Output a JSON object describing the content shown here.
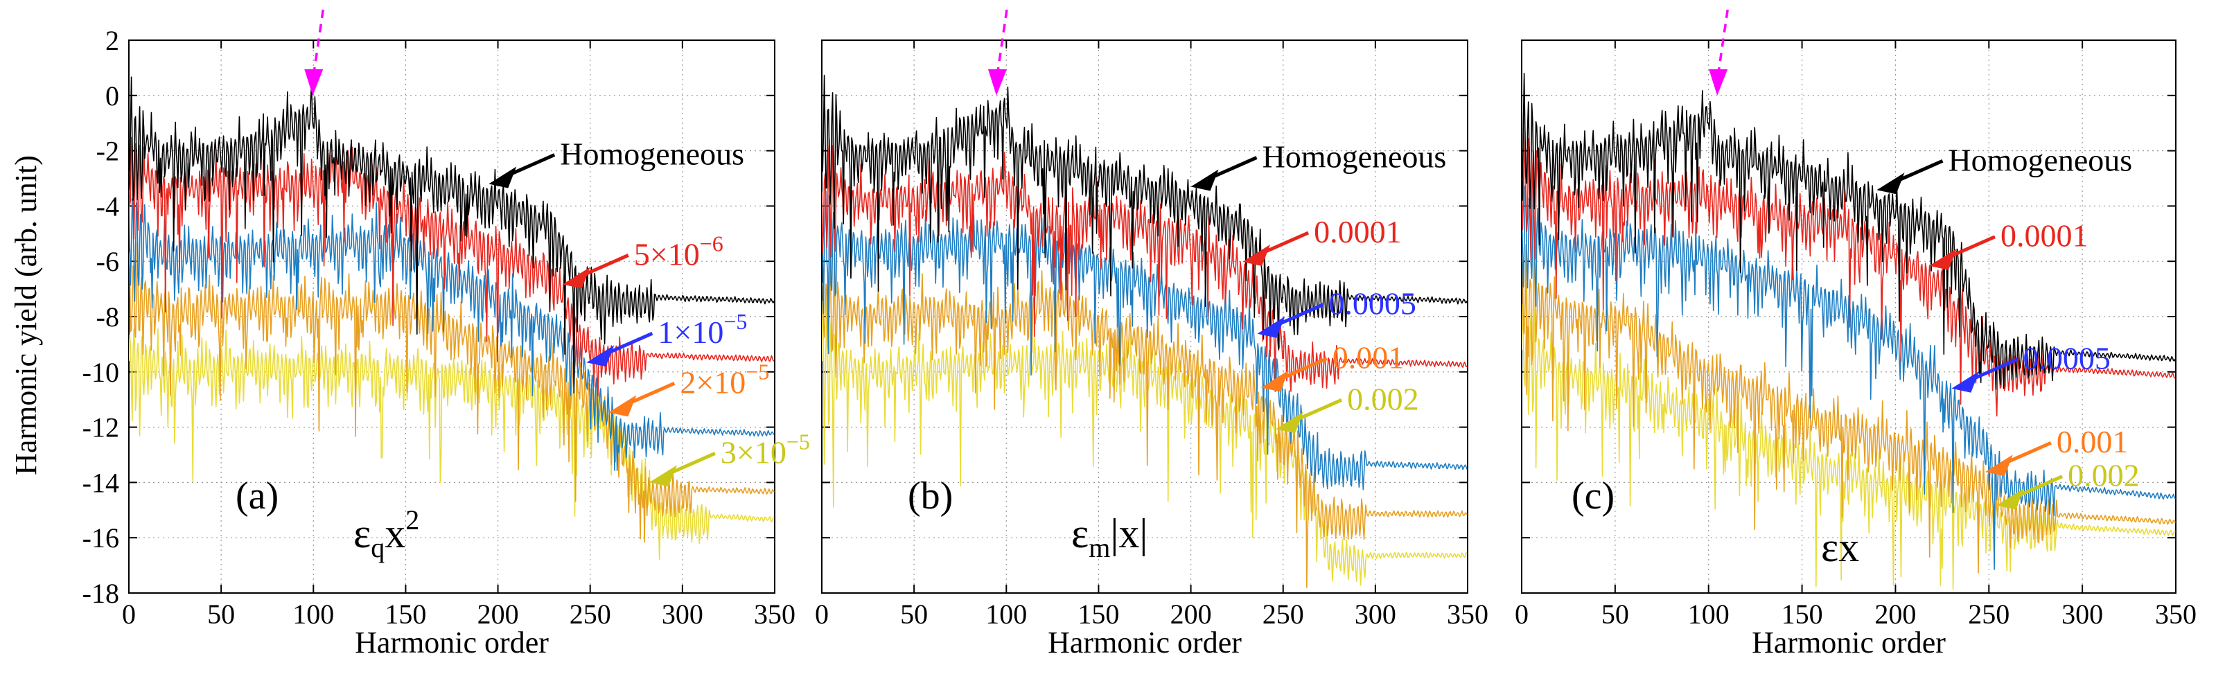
{
  "figure": {
    "ylabel": "Harmonic yield (arb. unit)",
    "xlabel": "Harmonic order",
    "xlim": [
      0,
      350
    ],
    "ylim": [
      -18,
      2
    ],
    "x_ticks": [
      "0",
      "50",
      "100",
      "150",
      "200",
      "250",
      "300",
      "350"
    ],
    "y_ticks": [
      "2",
      "0",
      "-2",
      "-4",
      "-6",
      "-8",
      "-10",
      "-12",
      "-14",
      "-16",
      "-18"
    ],
    "colors": {
      "black": "#000000",
      "red": "#e8261e",
      "blue": "#1f7ec2",
      "orange": "#e8a020",
      "yellow": "#eadc38",
      "magenta": "#ff00ff",
      "arrow_blue": "#2b32ff",
      "arrow_orange": "#ff7a1a",
      "arrow_yellow": "#c9c81a",
      "arrow_red": "#e8261e"
    }
  },
  "chart_data": [
    {
      "type": "line",
      "panel_label": "(a)",
      "potential": "εqx²",
      "potential_parts": {
        "base": "ε",
        "sub": "q",
        "var": "x",
        "sup": "2"
      },
      "xlabel": "Harmonic order",
      "ylabel": "Harmonic yield (arb. unit)",
      "xlim": [
        0,
        350
      ],
      "ylim": [
        -18,
        2
      ],
      "marker_x": 100,
      "series": [
        {
          "name": "Homogeneous",
          "label_parts": {
            "text": "Homogeneous"
          },
          "color": "black",
          "x": [
            0,
            20,
            60,
            100,
            105,
            150,
            200,
            230,
            245,
            260,
            300,
            350
          ],
          "y": [
            -1.0,
            -2.0,
            -1.8,
            -0.5,
            -1.8,
            -2.6,
            -3.6,
            -4.6,
            -6.8,
            -7.2,
            -7.3,
            -7.4
          ]
        },
        {
          "name": "5×10^-6",
          "label_parts": {
            "mant": "5×10",
            "exp": "−6"
          },
          "color": "red",
          "x": [
            0,
            20,
            60,
            100,
            115,
            150,
            200,
            230,
            245,
            255,
            300,
            350
          ],
          "y": [
            -2.2,
            -3.2,
            -3.0,
            -3.0,
            -2.4,
            -4.0,
            -5.4,
            -6.4,
            -8.6,
            -9.3,
            -9.4,
            -9.5
          ]
        },
        {
          "name": "1×10^-5",
          "label_parts": {
            "mant": "1×10",
            "exp": "−5"
          },
          "color": "blue",
          "x": [
            0,
            20,
            60,
            100,
            140,
            170,
            200,
            230,
            245,
            265,
            300,
            350
          ],
          "y": [
            -4.2,
            -5.6,
            -5.4,
            -5.2,
            -5.0,
            -6.0,
            -7.2,
            -8.2,
            -9.6,
            -12.0,
            -12.1,
            -12.2
          ]
        },
        {
          "name": "2×10^-5",
          "label_parts": {
            "mant": "2×10",
            "exp": "−5"
          },
          "color": "orange",
          "x": [
            0,
            20,
            60,
            100,
            150,
            180,
            220,
            250,
            262,
            280,
            300,
            350
          ],
          "y": [
            -6.6,
            -7.6,
            -7.4,
            -7.4,
            -7.4,
            -8.4,
            -9.6,
            -10.6,
            -12.0,
            -14.1,
            -14.2,
            -14.3
          ]
        },
        {
          "name": "3×10^-5",
          "label_parts": {
            "mant": "3×10",
            "exp": "−5"
          },
          "color": "yellow",
          "x": [
            0,
            20,
            60,
            100,
            150,
            200,
            230,
            262,
            275,
            290,
            320,
            350
          ],
          "y": [
            -8.8,
            -9.8,
            -9.6,
            -9.6,
            -9.8,
            -10.2,
            -10.8,
            -11.8,
            -13.6,
            -15.1,
            -15.2,
            -15.3
          ]
        }
      ],
      "annotations": [
        {
          "series": "Homogeneous",
          "color": "black"
        },
        {
          "series": "5×10^-6",
          "color": "arrow_red"
        },
        {
          "series": "1×10^-5",
          "color": "arrow_blue"
        },
        {
          "series": "2×10^-5",
          "color": "arrow_orange"
        },
        {
          "series": "3×10^-5",
          "color": "arrow_yellow"
        }
      ]
    },
    {
      "type": "line",
      "panel_label": "(b)",
      "potential": "εm|x|",
      "potential_parts": {
        "base": "ε",
        "sub": "m",
        "var": "|x|",
        "sup": ""
      },
      "xlabel": "Harmonic order",
      "ylabel": "",
      "xlim": [
        0,
        350
      ],
      "ylim": [
        -18,
        2
      ],
      "marker_x": 95,
      "series": [
        {
          "name": "Homogeneous",
          "label_parts": {
            "text": "Homogeneous"
          },
          "color": "black",
          "x": [
            0,
            20,
            60,
            100,
            105,
            150,
            200,
            230,
            245,
            260,
            300,
            350
          ],
          "y": [
            -1.0,
            -2.0,
            -1.8,
            -0.4,
            -1.8,
            -2.6,
            -3.6,
            -4.6,
            -6.8,
            -7.2,
            -7.3,
            -7.4
          ]
        },
        {
          "name": "0.0001",
          "label_parts": {
            "text": "0.0001"
          },
          "color": "red",
          "x": [
            0,
            20,
            60,
            100,
            120,
            150,
            200,
            225,
            240,
            255,
            300,
            350
          ],
          "y": [
            -2.8,
            -3.6,
            -3.4,
            -3.0,
            -4.4,
            -4.0,
            -5.0,
            -6.0,
            -7.6,
            -9.5,
            -9.6,
            -9.7
          ]
        },
        {
          "name": "0.0005",
          "label_parts": {
            "text": "0.0005"
          },
          "color": "blue",
          "x": [
            0,
            20,
            60,
            100,
            130,
            170,
            200,
            230,
            245,
            270,
            300,
            350
          ],
          "y": [
            -4.4,
            -5.4,
            -5.2,
            -5.0,
            -5.4,
            -6.4,
            -7.4,
            -8.2,
            -10.0,
            -13.2,
            -13.3,
            -13.4
          ]
        },
        {
          "name": "0.001",
          "label_parts": {
            "text": "0.001"
          },
          "color": "orange",
          "x": [
            0,
            20,
            60,
            100,
            125,
            160,
            200,
            235,
            255,
            270,
            300,
            350
          ],
          "y": [
            -6.8,
            -7.8,
            -7.6,
            -7.8,
            -7.2,
            -8.4,
            -9.4,
            -10.6,
            -12.4,
            -15.0,
            -15.1,
            -15.1
          ]
        },
        {
          "name": "0.002",
          "label_parts": {
            "text": "0.002"
          },
          "color": "yellow",
          "x": [
            0,
            20,
            60,
            100,
            130,
            160,
            200,
            230,
            255,
            270,
            275,
            290
          ],
          "y": [
            -8.8,
            -9.8,
            -9.6,
            -9.4,
            -9.4,
            -9.6,
            -10.4,
            -11.6,
            -12.8,
            -15.2,
            -16.4,
            -16.6
          ]
        }
      ],
      "annotations": [
        {
          "series": "Homogeneous",
          "color": "black"
        },
        {
          "series": "0.0001",
          "color": "arrow_red"
        },
        {
          "series": "0.0005",
          "color": "arrow_blue"
        },
        {
          "series": "0.001",
          "color": "arrow_orange"
        },
        {
          "series": "0.002",
          "color": "arrow_yellow"
        }
      ]
    },
    {
      "type": "line",
      "panel_label": "(c)",
      "potential": "εx",
      "potential_parts": {
        "base": "ε",
        "sub": "",
        "var": "x",
        "sup": ""
      },
      "xlabel": "Harmonic order",
      "ylabel": "",
      "xlim": [
        0,
        350
      ],
      "ylim": [
        -18,
        2
      ],
      "marker_x": 105,
      "series": [
        {
          "name": "Homogeneous",
          "label_parts": {
            "text": "Homogeneous"
          },
          "color": "black",
          "x": [
            0,
            20,
            60,
            100,
            105,
            150,
            200,
            230,
            245,
            260,
            300,
            350
          ],
          "y": [
            -1.0,
            -2.0,
            -1.8,
            -0.6,
            -1.8,
            -2.6,
            -4.0,
            -5.0,
            -8.4,
            -9.2,
            -9.3,
            -9.5
          ]
        },
        {
          "name": "0.0001",
          "label_parts": {
            "text": "0.0001"
          },
          "color": "red",
          "x": [
            0,
            20,
            60,
            100,
            140,
            170,
            200,
            225,
            240,
            255,
            300,
            350
          ],
          "y": [
            -2.4,
            -3.6,
            -3.4,
            -3.4,
            -4.2,
            -4.4,
            -5.6,
            -6.8,
            -8.4,
            -9.8,
            -9.9,
            -10.1
          ]
        },
        {
          "name": "0.0005",
          "label_parts": {
            "text": "0.0005"
          },
          "color": "blue",
          "x": [
            0,
            20,
            60,
            100,
            140,
            170,
            200,
            220,
            240,
            260,
            300,
            350
          ],
          "y": [
            -4.4,
            -5.4,
            -5.2,
            -5.6,
            -6.6,
            -7.4,
            -8.6,
            -10.0,
            -11.8,
            -14.0,
            -14.2,
            -14.5
          ]
        },
        {
          "name": "0.001",
          "label_parts": {
            "text": "0.001"
          },
          "color": "orange",
          "x": [
            0,
            20,
            60,
            100,
            130,
            160,
            200,
            230,
            250,
            262,
            300,
            350
          ],
          "y": [
            -6.6,
            -7.6,
            -8.0,
            -10.0,
            -10.6,
            -11.6,
            -12.4,
            -13.2,
            -14.0,
            -15.0,
            -15.2,
            -15.4
          ]
        },
        {
          "name": "0.002",
          "label_parts": {
            "text": "0.002"
          },
          "color": "yellow",
          "x": [
            0,
            20,
            60,
            90,
            120,
            160,
            200,
            230,
            250,
            262,
            300,
            350
          ],
          "y": [
            -8.4,
            -9.8,
            -10.4,
            -11.2,
            -12.2,
            -13.2,
            -14.0,
            -14.4,
            -15.0,
            -15.4,
            -15.6,
            -15.8
          ]
        }
      ],
      "annotations": [
        {
          "series": "Homogeneous",
          "color": "black"
        },
        {
          "series": "0.0001",
          "color": "arrow_red"
        },
        {
          "series": "0.0005",
          "color": "arrow_blue"
        },
        {
          "series": "0.001",
          "color": "arrow_orange"
        },
        {
          "series": "0.002",
          "color": "arrow_yellow"
        }
      ]
    }
  ]
}
